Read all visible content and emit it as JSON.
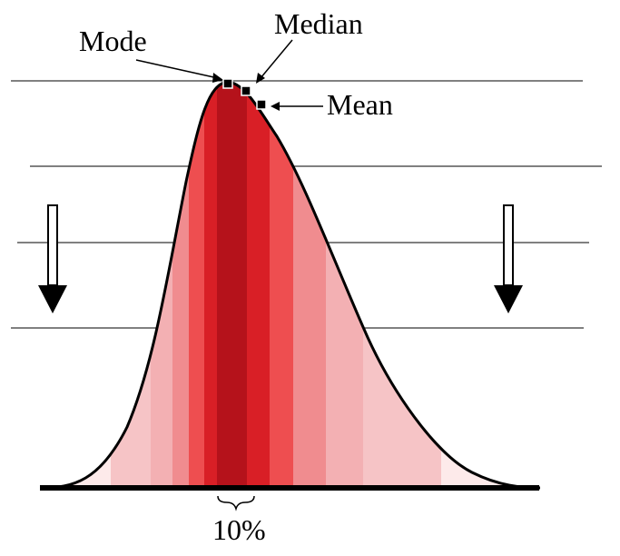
{
  "labels": {
    "mode": "Mode",
    "median": "Median",
    "mean": "Mean",
    "percent": "10%"
  },
  "band_colors": [
    "#fdeaea",
    "#f6c4c6",
    "#f3b0b3",
    "#f08c8f",
    "#ee4e50",
    "#d91f26",
    "#b5121b"
  ],
  "icons": {
    "left_arrow": "down-arrow",
    "right_arrow": "down-arrow",
    "brace": "curly-brace"
  }
}
